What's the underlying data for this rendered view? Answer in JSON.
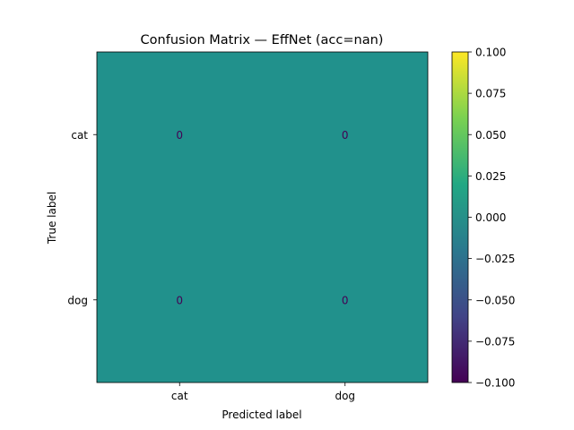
{
  "chart_data": {
    "type": "heatmap",
    "title": "Confusion Matrix — EffNet (acc=nan)",
    "xlabel": "Predicted label",
    "ylabel": "True label",
    "x_categories": [
      "cat",
      "dog"
    ],
    "y_categories": [
      "cat",
      "dog"
    ],
    "values": [
      [
        0,
        0
      ],
      [
        0,
        0
      ]
    ],
    "cell_labels": [
      [
        "0",
        "0"
      ],
      [
        "0",
        "0"
      ]
    ],
    "colormap": "viridis",
    "cell_color": "#21918c",
    "annotation_color": "#440154",
    "colorbar": {
      "range": [
        -0.1,
        0.1
      ],
      "ticks": [
        "0.100",
        "0.075",
        "0.050",
        "0.025",
        "0.000",
        "−0.025",
        "−0.050",
        "−0.075",
        "−0.100"
      ],
      "tick_values": [
        0.1,
        0.075,
        0.05,
        0.025,
        0.0,
        -0.025,
        -0.05,
        -0.075,
        -0.1
      ],
      "gradient_colors": [
        "#fde725",
        "#7ad151",
        "#22a884",
        "#2a788e",
        "#414487",
        "#440154"
      ]
    }
  }
}
